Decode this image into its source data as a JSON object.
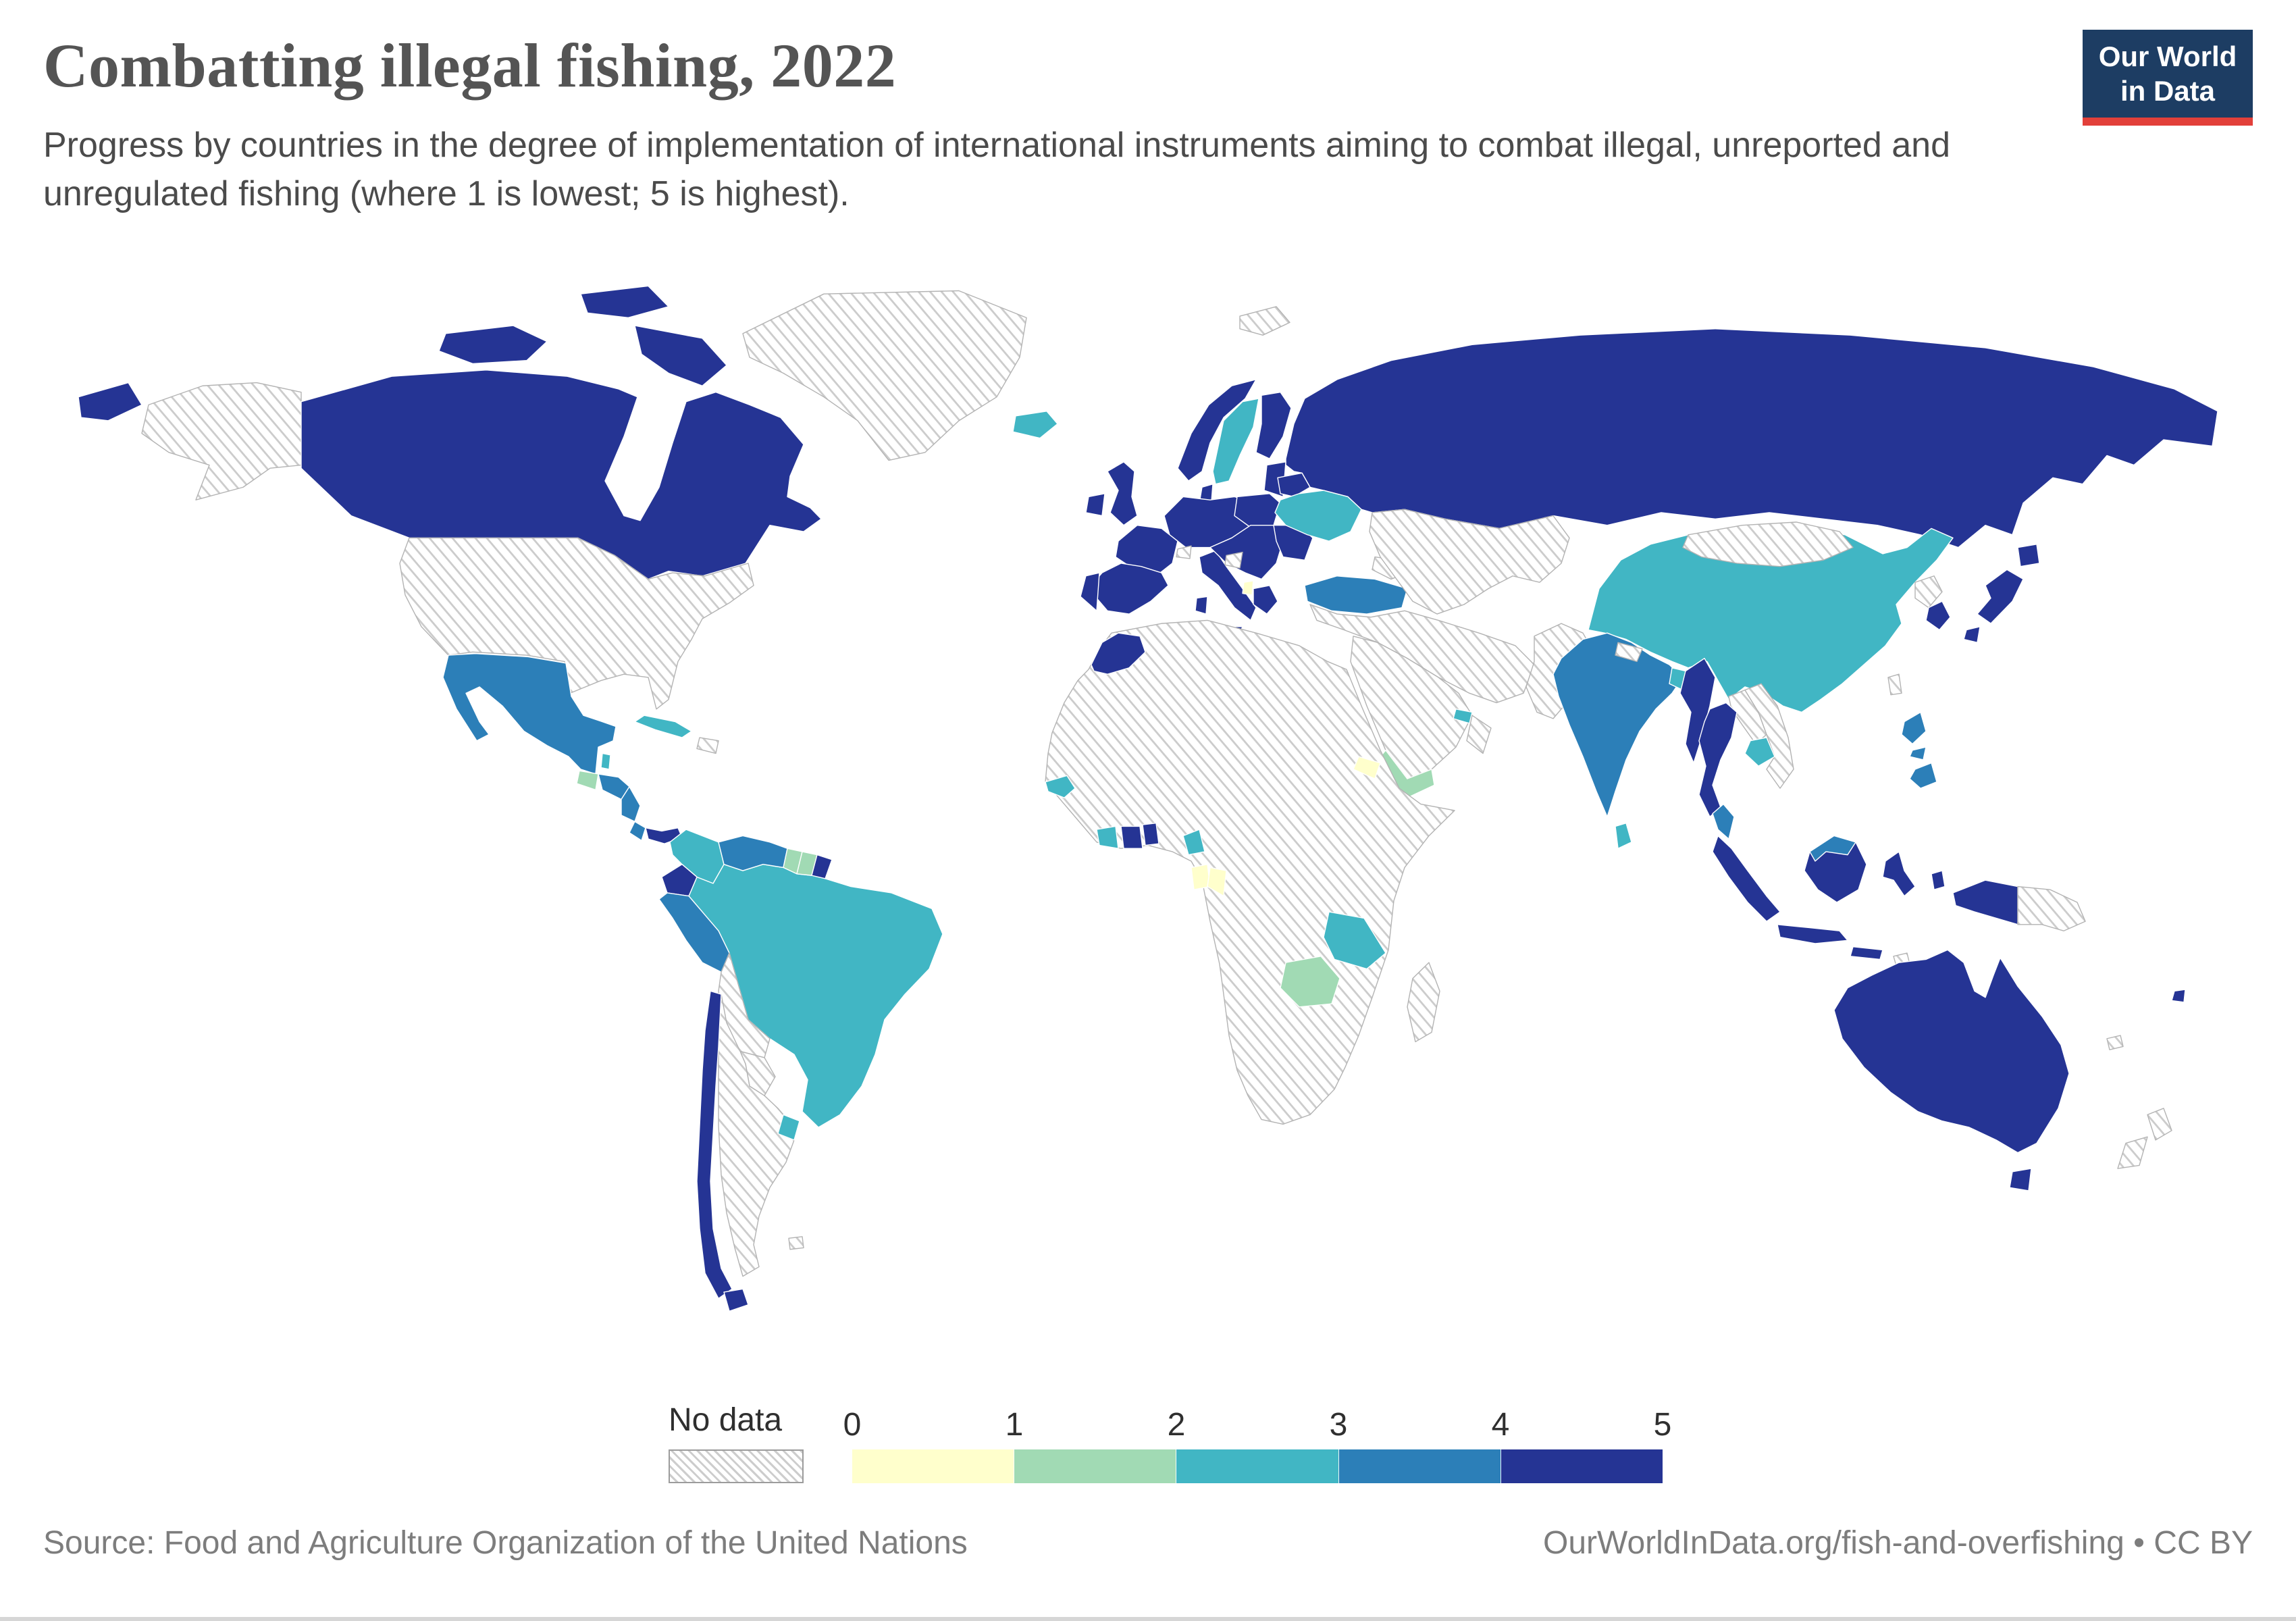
{
  "header": {
    "title": "Combatting illegal fishing, 2022",
    "subtitle": "Progress by countries in the degree of implementation of international instruments aiming to combat illegal, unreported and unregulated fishing (where 1 is lowest; 5 is highest).",
    "logo": {
      "line1": "Our World",
      "line2": "in Data",
      "background": "#1d3d63",
      "accent": "#e2403a"
    }
  },
  "legend": {
    "no_data_label": "No data",
    "ticks": [
      "0",
      "1",
      "2",
      "3",
      "4",
      "5"
    ]
  },
  "footer": {
    "source": "Source: Food and Agriculture Organization of the United Nations",
    "link": "OurWorldInData.org/fish-and-overfishing • CC BY"
  },
  "chart_data": {
    "type": "choropleth_map",
    "title": "Combatting illegal fishing, 2022",
    "value_range": [
      0,
      5
    ],
    "bins": [
      0,
      1,
      2,
      3,
      4,
      5
    ],
    "colors": [
      "#ffffcc",
      "#a1dab4",
      "#41b6c4",
      "#2c7fb8",
      "#253494"
    ],
    "no_data_style": "gray-diagonal-hatch",
    "countries": [
      {
        "name": "Canada",
        "value": 5
      },
      {
        "name": "Russia",
        "value": 5
      },
      {
        "name": "Norway",
        "value": 5
      },
      {
        "name": "Finland",
        "value": 5
      },
      {
        "name": "Denmark",
        "value": 5
      },
      {
        "name": "United Kingdom",
        "value": 5
      },
      {
        "name": "Ireland",
        "value": 5
      },
      {
        "name": "France",
        "value": 5
      },
      {
        "name": "Germany",
        "value": 5
      },
      {
        "name": "Poland",
        "value": 5
      },
      {
        "name": "Belarus",
        "value": 5
      },
      {
        "name": "Lithuania",
        "value": 5
      },
      {
        "name": "Spain",
        "value": 5
      },
      {
        "name": "Portugal",
        "value": 5
      },
      {
        "name": "Italy",
        "value": 5
      },
      {
        "name": "Croatia",
        "value": 5
      },
      {
        "name": "Greece",
        "value": 5
      },
      {
        "name": "Romania",
        "value": 5
      },
      {
        "name": "Morocco",
        "value": 5
      },
      {
        "name": "Ghana",
        "value": 5
      },
      {
        "name": "Benin",
        "value": 5
      },
      {
        "name": "Panama",
        "value": 5
      },
      {
        "name": "Ecuador",
        "value": 5
      },
      {
        "name": "Chile",
        "value": 5
      },
      {
        "name": "Myanmar",
        "value": 5
      },
      {
        "name": "Thailand",
        "value": 5
      },
      {
        "name": "Japan",
        "value": 5
      },
      {
        "name": "South Korea",
        "value": 5
      },
      {
        "name": "Indonesia",
        "value": 5
      },
      {
        "name": "Australia",
        "value": 5
      },
      {
        "name": "Fiji",
        "value": 5
      },
      {
        "name": "Mexico",
        "value": 4
      },
      {
        "name": "Honduras",
        "value": 4
      },
      {
        "name": "Nicaragua",
        "value": 4
      },
      {
        "name": "Costa Rica",
        "value": 4
      },
      {
        "name": "Venezuela",
        "value": 4
      },
      {
        "name": "Peru",
        "value": 4
      },
      {
        "name": "Turkey",
        "value": 4
      },
      {
        "name": "India",
        "value": 4
      },
      {
        "name": "Philippines",
        "value": 4
      },
      {
        "name": "Malaysia",
        "value": 4
      },
      {
        "name": "Cuba",
        "value": 3
      },
      {
        "name": "Belize",
        "value": 3
      },
      {
        "name": "Colombia",
        "value": 3
      },
      {
        "name": "Brazil",
        "value": 3
      },
      {
        "name": "Uruguay",
        "value": 3
      },
      {
        "name": "Iceland",
        "value": 3
      },
      {
        "name": "Sweden",
        "value": 3
      },
      {
        "name": "Ukraine",
        "value": 3
      },
      {
        "name": "United Arab Emirates",
        "value": 3
      },
      {
        "name": "Senegal",
        "value": 3
      },
      {
        "name": "Cote d'Ivoire",
        "value": 3
      },
      {
        "name": "Cameroon",
        "value": 3
      },
      {
        "name": "Tanzania",
        "value": 3
      },
      {
        "name": "Sri Lanka",
        "value": 3
      },
      {
        "name": "Bangladesh",
        "value": 3
      },
      {
        "name": "Cambodia",
        "value": 3
      },
      {
        "name": "China",
        "value": 3
      },
      {
        "name": "Guatemala",
        "value": 2
      },
      {
        "name": "Guyana",
        "value": 2
      },
      {
        "name": "Suriname",
        "value": 2
      },
      {
        "name": "Yemen",
        "value": 2
      },
      {
        "name": "Zambia",
        "value": 2
      },
      {
        "name": "Gabon",
        "value": 1
      },
      {
        "name": "Republic of the Congo",
        "value": 1
      },
      {
        "name": "Eritrea",
        "value": 1
      },
      {
        "name": "Albania",
        "value": 1
      }
    ]
  }
}
